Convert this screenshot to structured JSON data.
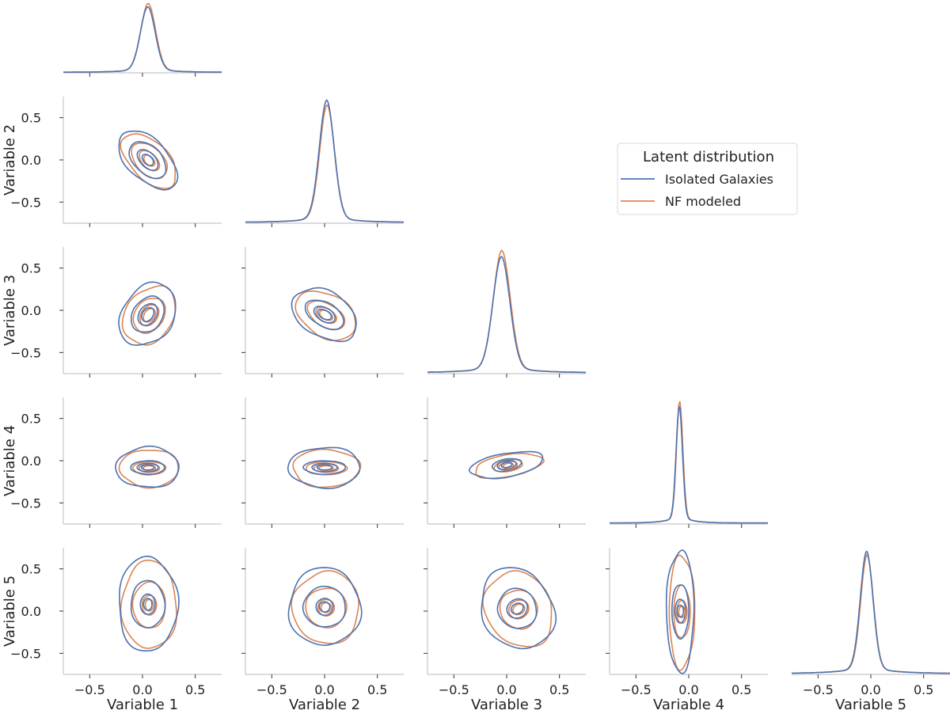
{
  "chart_data": {
    "type": "corner-plot",
    "variables": [
      "Variable 1",
      "Variable 2",
      "Variable 3",
      "Variable 4",
      "Variable 5"
    ],
    "axis_range": [
      -0.75,
      0.75
    ],
    "ticks": [
      -0.5,
      0.0,
      0.5
    ],
    "tick_labels": [
      "−0.5",
      "0.0",
      "0.5"
    ],
    "legend": {
      "title": "Latent distribution",
      "placement": "upper-right",
      "entries": [
        {
          "name": "Isolated Galaxies",
          "color": "#4c72b0"
        },
        {
          "name": "NF modeled",
          "color": "#dd8452"
        }
      ]
    },
    "diagonals": [
      {
        "variable": "Variable 1",
        "mode": 0.05,
        "width": 0.07,
        "tail": 0.2,
        "peak_iso": 0.95,
        "peak_nf": 1.0
      },
      {
        "variable": "Variable 2",
        "mode": 0.02,
        "width": 0.07,
        "tail": 0.2,
        "peak_iso": 1.0,
        "peak_nf": 0.96
      },
      {
        "variable": "Variable 3",
        "mode": -0.05,
        "width": 0.08,
        "tail": 0.25,
        "peak_iso": 0.95,
        "peak_nf": 1.0
      },
      {
        "variable": "Variable 4",
        "mode": -0.09,
        "width": 0.03,
        "tail": 0.12,
        "peak_iso": 0.96,
        "peak_nf": 1.0
      },
      {
        "variable": "Variable 5",
        "mode": -0.04,
        "width": 0.06,
        "tail": 0.22,
        "peak_iso": 1.0,
        "peak_nf": 0.97
      }
    ],
    "pairs": [
      {
        "x": "Variable 1",
        "y": "Variable 2",
        "center": [
          0.05,
          0.0
        ],
        "levels": [
          {
            "rx": 0.19,
            "ry": 0.43,
            "angle": 45
          },
          {
            "rx": 0.13,
            "ry": 0.26,
            "angle": 45
          },
          {
            "rx": 0.07,
            "ry": 0.15,
            "angle": 45
          },
          {
            "rx": 0.04,
            "ry": 0.08,
            "angle": 45
          }
        ]
      },
      {
        "x": "Variable 1",
        "y": "Variable 3",
        "center": [
          0.05,
          -0.05
        ],
        "levels": [
          {
            "rx": 0.24,
            "ry": 0.4,
            "angle": -35
          },
          {
            "rx": 0.14,
            "ry": 0.23,
            "angle": -35
          },
          {
            "rx": 0.08,
            "ry": 0.14,
            "angle": -35
          },
          {
            "rx": 0.05,
            "ry": 0.09,
            "angle": -35
          }
        ]
      },
      {
        "x": "Variable 2",
        "y": "Variable 3",
        "center": [
          0.0,
          -0.05
        ],
        "levels": [
          {
            "rx": 0.33,
            "ry": 0.27,
            "angle": -30
          },
          {
            "rx": 0.2,
            "ry": 0.14,
            "angle": -30
          },
          {
            "rx": 0.11,
            "ry": 0.08,
            "angle": -30
          },
          {
            "rx": 0.07,
            "ry": 0.05,
            "angle": -30
          }
        ]
      },
      {
        "x": "Variable 1",
        "y": "Variable 4",
        "center": [
          0.05,
          -0.08
        ],
        "levels": [
          {
            "rx": 0.3,
            "ry": 0.24,
            "angle": 0
          },
          {
            "rx": 0.16,
            "ry": 0.08,
            "angle": 0
          },
          {
            "rx": 0.1,
            "ry": 0.05,
            "angle": 0
          },
          {
            "rx": 0.06,
            "ry": 0.03,
            "angle": 0
          }
        ]
      },
      {
        "x": "Variable 2",
        "y": "Variable 4",
        "center": [
          0.0,
          -0.08
        ],
        "levels": [
          {
            "rx": 0.34,
            "ry": 0.24,
            "angle": 0
          },
          {
            "rx": 0.2,
            "ry": 0.08,
            "angle": 0
          },
          {
            "rx": 0.12,
            "ry": 0.05,
            "angle": 0
          },
          {
            "rx": 0.07,
            "ry": 0.03,
            "angle": 0
          }
        ]
      },
      {
        "x": "Variable 3",
        "y": "Variable 4",
        "center": [
          0.0,
          -0.05
        ],
        "levels": [
          {
            "rx": 0.35,
            "ry": 0.14,
            "angle": 10
          },
          {
            "rx": 0.14,
            "ry": 0.07,
            "angle": 10
          },
          {
            "rx": 0.09,
            "ry": 0.05,
            "angle": 10
          },
          {
            "rx": 0.05,
            "ry": 0.03,
            "angle": 10
          }
        ]
      },
      {
        "x": "Variable 1",
        "y": "Variable 5",
        "center": [
          0.05,
          0.08
        ],
        "levels": [
          {
            "rx": 0.28,
            "ry": 0.56,
            "angle": 0
          },
          {
            "rx": 0.16,
            "ry": 0.28,
            "angle": 0
          },
          {
            "rx": 0.07,
            "ry": 0.12,
            "angle": 0
          },
          {
            "rx": 0.04,
            "ry": 0.07,
            "angle": 0
          }
        ]
      },
      {
        "x": "Variable 2",
        "y": "Variable 5",
        "center": [
          0.0,
          0.05
        ],
        "levels": [
          {
            "rx": 0.34,
            "ry": 0.46,
            "angle": 0
          },
          {
            "rx": 0.2,
            "ry": 0.24,
            "angle": 0
          },
          {
            "rx": 0.08,
            "ry": 0.1,
            "angle": 0
          },
          {
            "rx": 0.05,
            "ry": 0.06,
            "angle": 0
          }
        ]
      },
      {
        "x": "Variable 3",
        "y": "Variable 5",
        "center": [
          0.1,
          0.03
        ],
        "levels": [
          {
            "rx": 0.33,
            "ry": 0.5,
            "angle": 30
          },
          {
            "rx": 0.18,
            "ry": 0.24,
            "angle": 30
          },
          {
            "rx": 0.1,
            "ry": 0.11,
            "angle": 30
          },
          {
            "rx": 0.06,
            "ry": 0.06,
            "angle": 30
          }
        ]
      },
      {
        "x": "Variable 4",
        "y": "Variable 5",
        "center": [
          -0.08,
          0.0
        ],
        "levels": [
          {
            "rx": 0.13,
            "ry": 0.72,
            "angle": 0
          },
          {
            "rx": 0.08,
            "ry": 0.32,
            "angle": 0
          },
          {
            "rx": 0.05,
            "ry": 0.14,
            "angle": 0
          },
          {
            "rx": 0.03,
            "ry": 0.07,
            "angle": 0
          }
        ]
      }
    ]
  }
}
